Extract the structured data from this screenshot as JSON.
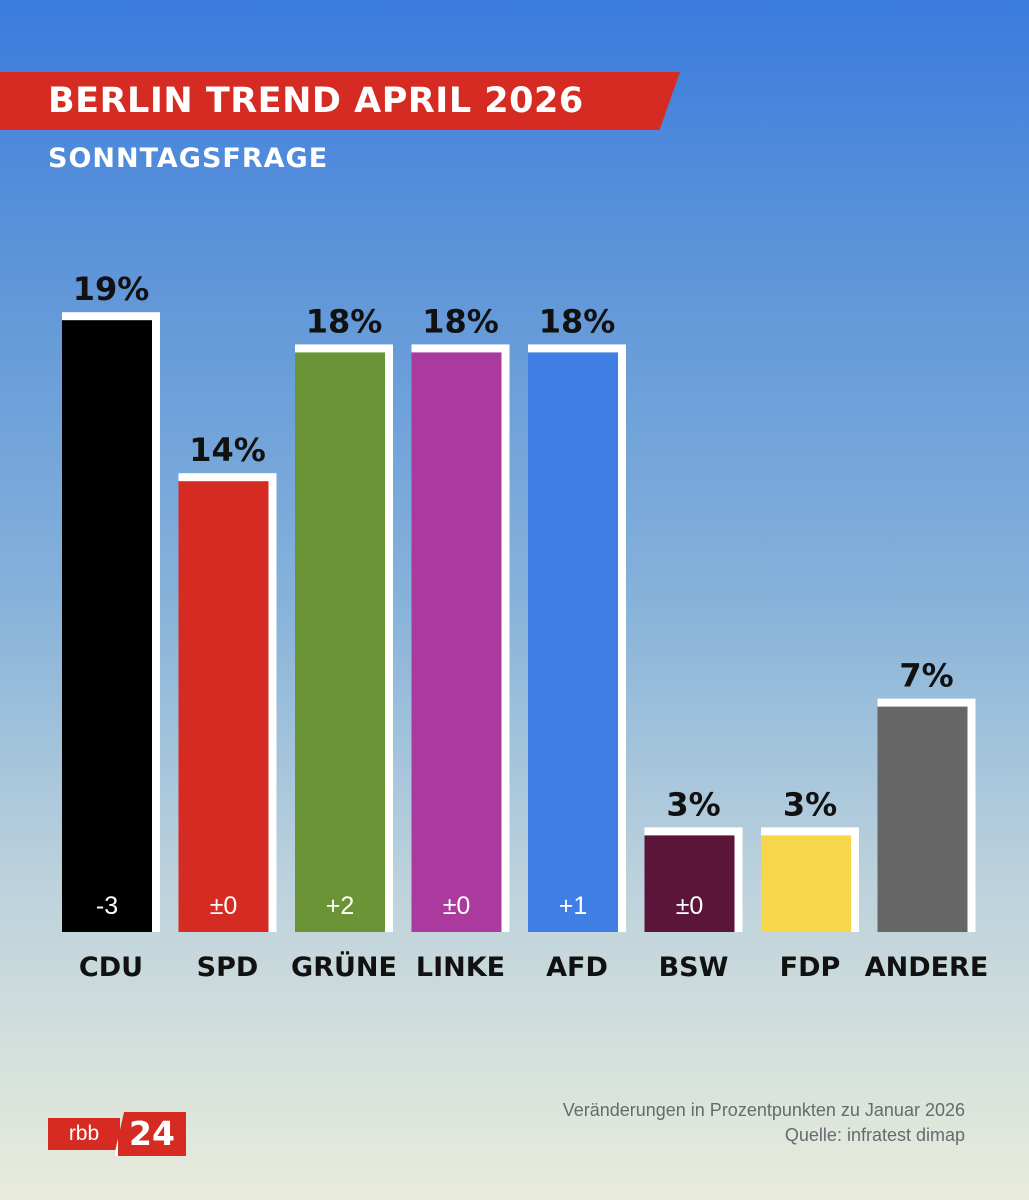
{
  "header": {
    "title": "BERLIN TREND APRIL 2026",
    "subtitle": "SONNTAGSFRAGE"
  },
  "chart_data": {
    "type": "bar",
    "title": "BERLIN TREND APRIL 2026",
    "subtitle": "SONNTAGSFRAGE",
    "categories": [
      "CDU",
      "SPD",
      "GRÜNE",
      "LINKE",
      "AFD",
      "BSW",
      "FDP",
      "ANDERE"
    ],
    "values": [
      19,
      14,
      18,
      18,
      18,
      3,
      3,
      7
    ],
    "value_labels": [
      "19%",
      "14%",
      "18%",
      "18%",
      "18%",
      "3%",
      "3%",
      "7%"
    ],
    "changes": [
      "-3",
      "±0",
      "+2",
      "±0",
      "+1",
      "±0",
      "",
      ""
    ],
    "colors": [
      "#000000",
      "#d62b22",
      "#6a9436",
      "#aa3a9e",
      "#3f7fe3",
      "#5b1538",
      "#f7d64c",
      "#666666"
    ],
    "ylim": [
      0,
      20
    ],
    "grid": false,
    "legend": "none"
  },
  "footer": {
    "note": "Veränderungen in Prozentpunkten zu Januar 2026",
    "source": "Quelle: infratest dimap",
    "logo_rbb": "rbb",
    "logo_24": "24"
  }
}
